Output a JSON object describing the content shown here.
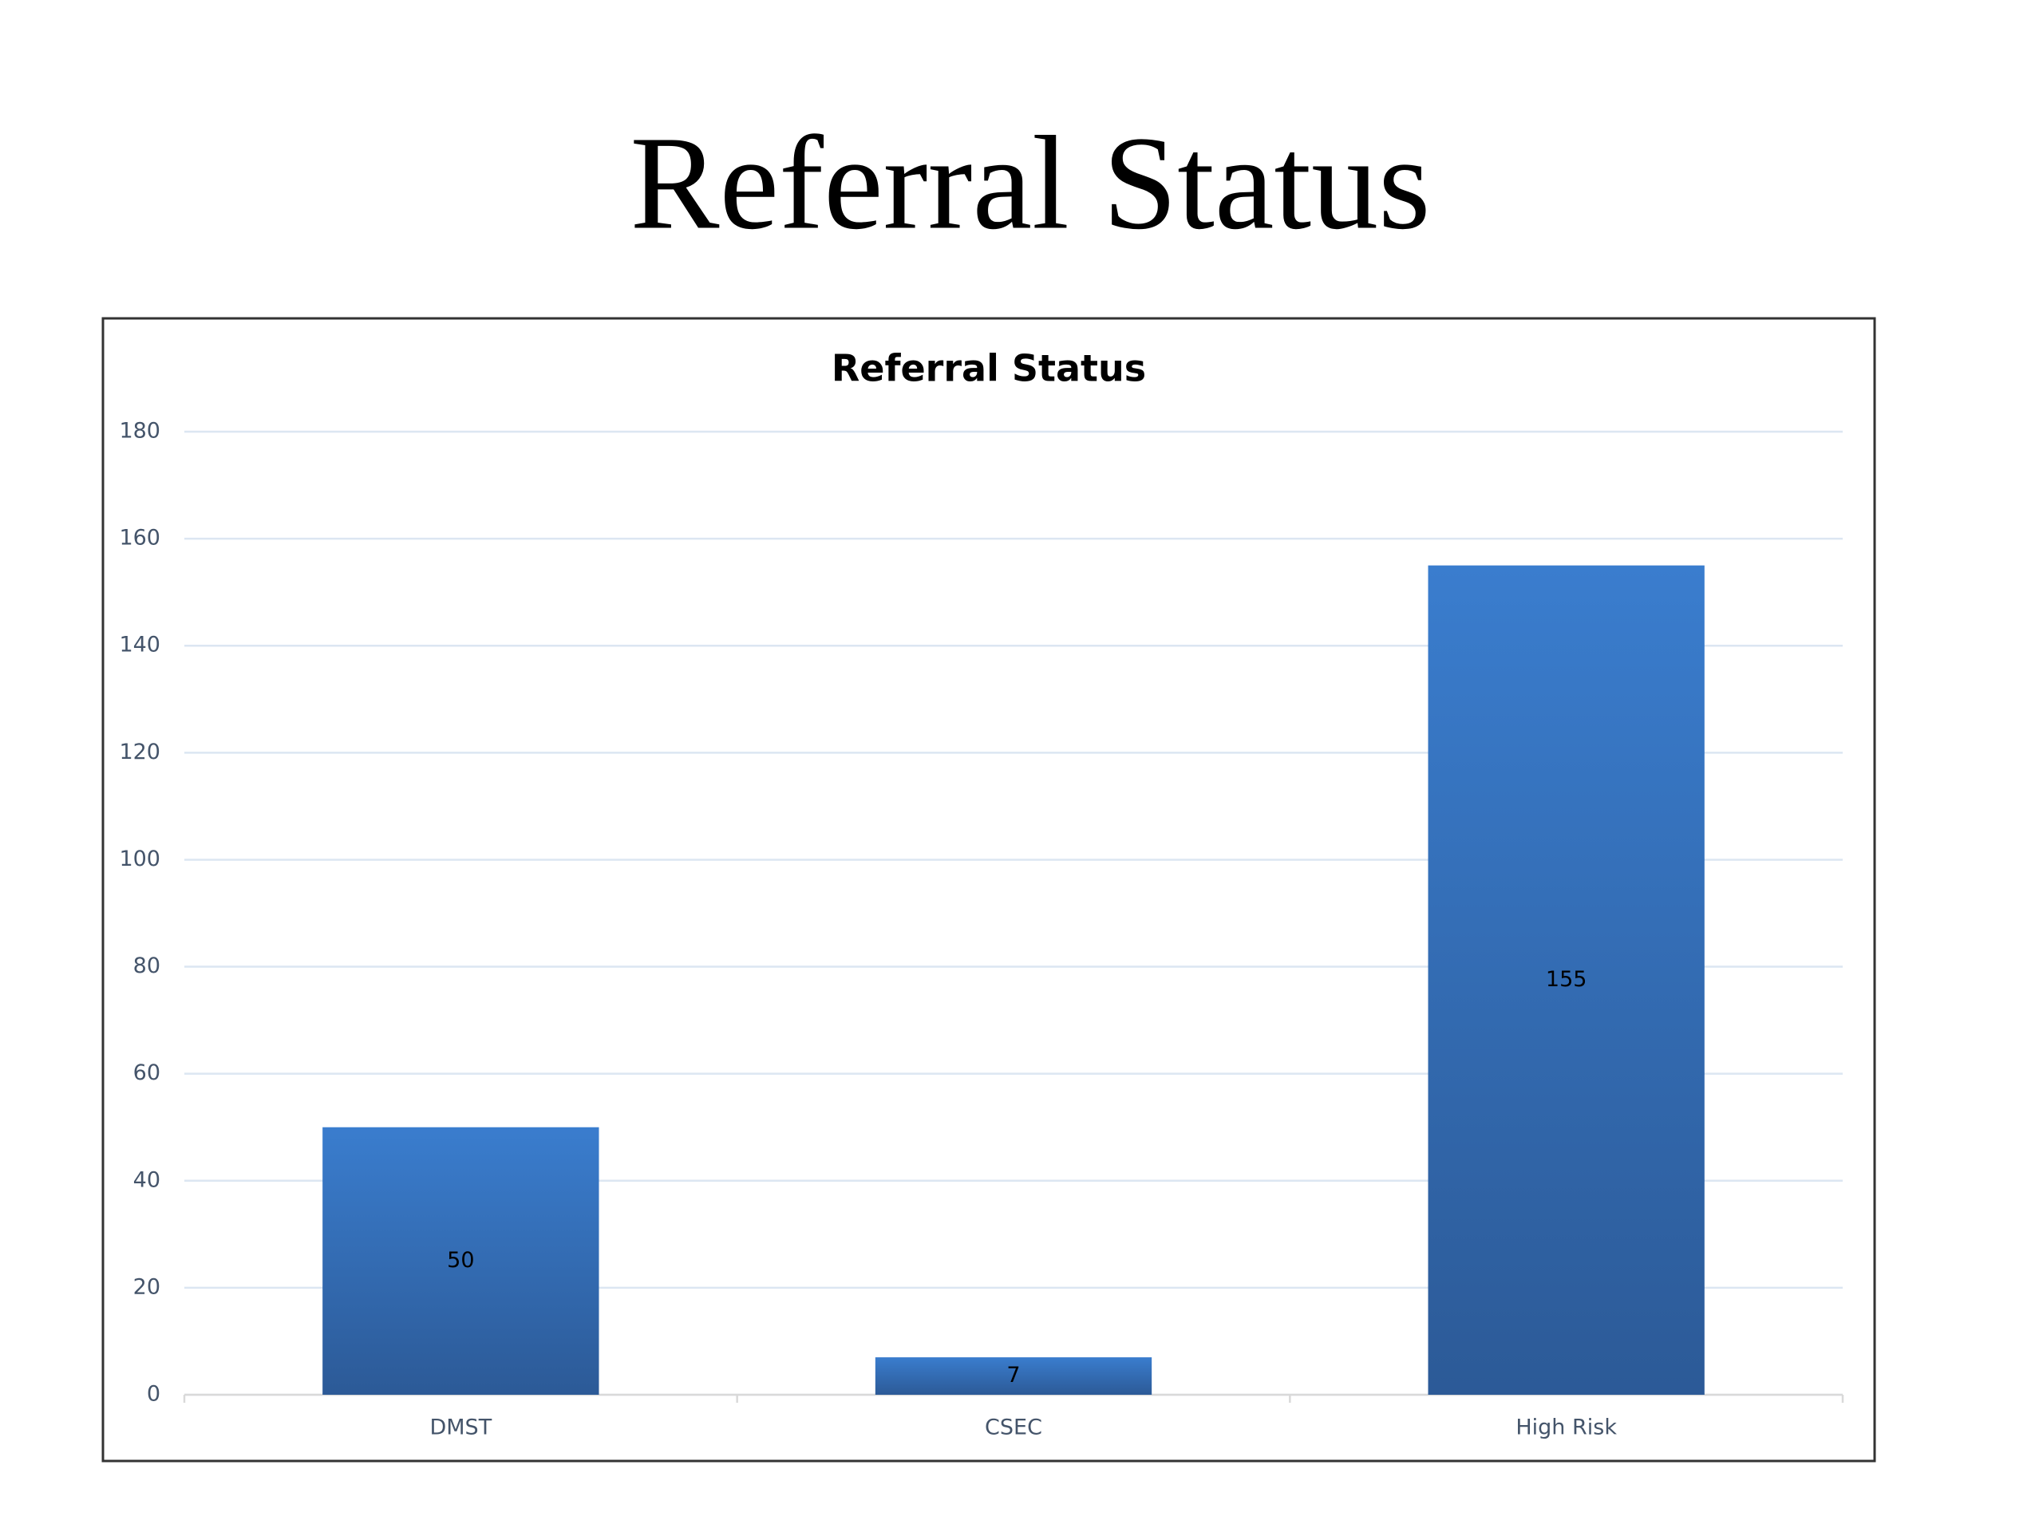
{
  "slide_title": "Referral Status",
  "chart_data": {
    "type": "bar",
    "title": "Referral Status",
    "categories": [
      "DMST",
      "CSEC",
      "High Risk"
    ],
    "values": [
      50,
      7,
      155
    ],
    "color": "#3a7dce",
    "ylim": [
      0,
      180
    ],
    "yticks": [
      0,
      20,
      40,
      60,
      80,
      100,
      120,
      140,
      160,
      180
    ],
    "grid": true
  }
}
